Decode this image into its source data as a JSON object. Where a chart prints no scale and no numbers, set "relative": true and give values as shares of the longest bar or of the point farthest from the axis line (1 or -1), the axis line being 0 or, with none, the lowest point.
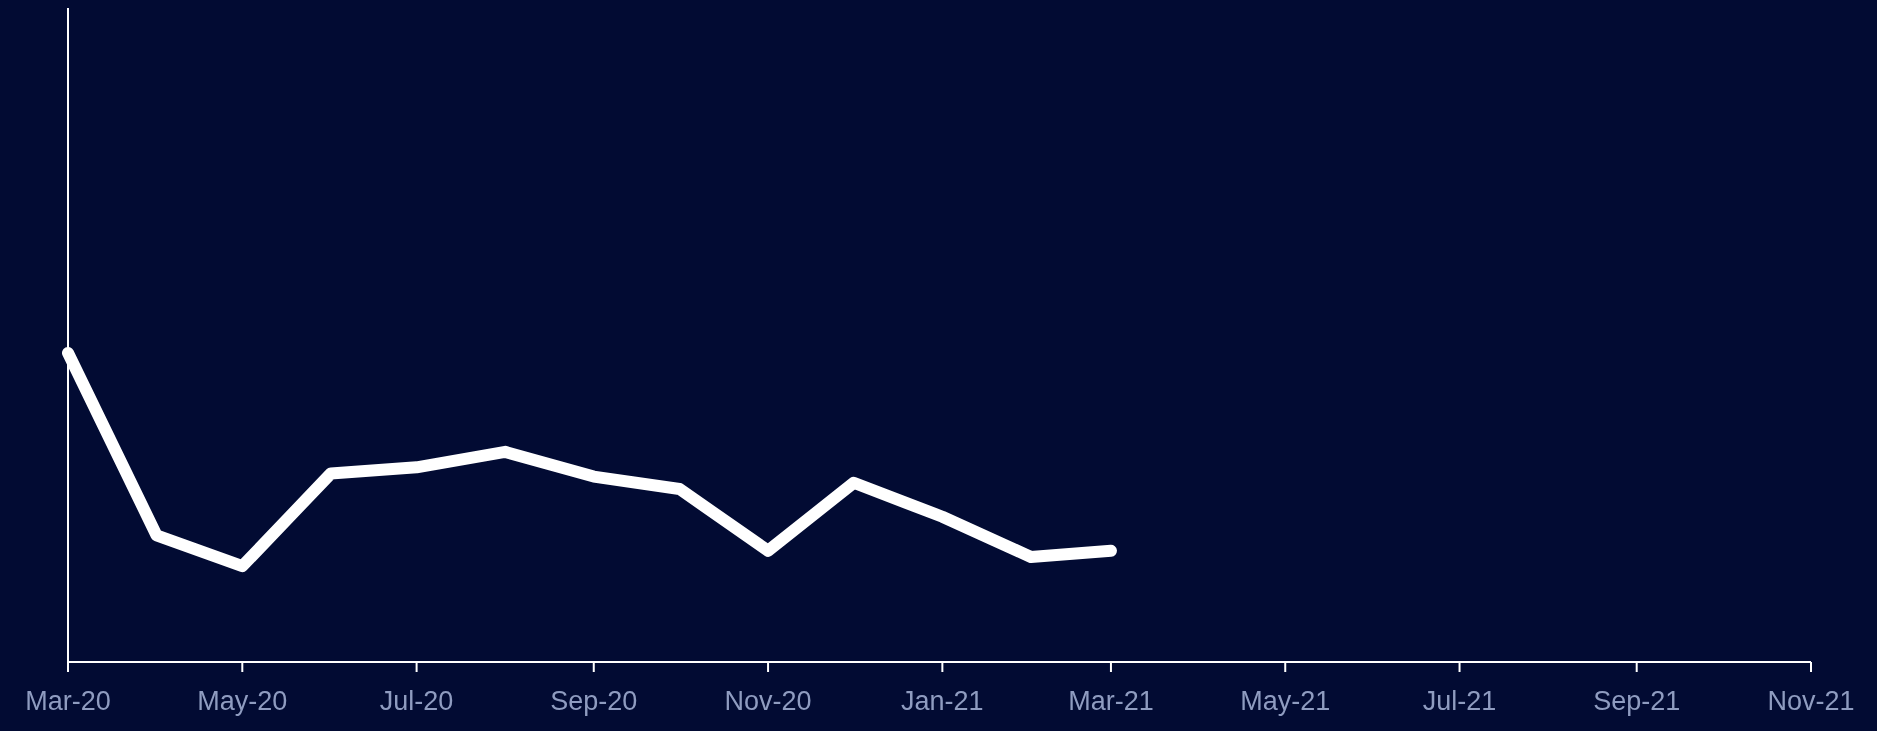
{
  "chart_data": {
    "type": "line",
    "relative": true,
    "x": [
      "2020-03",
      "2020-04",
      "2020-05",
      "2020-06",
      "2020-07",
      "2020-08",
      "2020-09",
      "2020-10",
      "2020-11",
      "2020-12",
      "2021-01",
      "2021-02",
      "2021-03"
    ],
    "series": [
      {
        "color": "#ffffff",
        "values": [
          1,
          0.41,
          0.31,
          0.61,
          0.63,
          0.68,
          0.6,
          0.56,
          0.36,
          0.58,
          0.47,
          0.34,
          0.36
        ]
      }
    ],
    "xlim": [
      "2020-03",
      "2021-11"
    ],
    "xticks": [
      {
        "value": "2020-03",
        "label": "Mar-20"
      },
      {
        "value": "2020-05",
        "label": "May-20"
      },
      {
        "value": "2020-07",
        "label": "Jul-20"
      },
      {
        "value": "2020-09",
        "label": "Sep-20"
      },
      {
        "value": "2020-11",
        "label": "Nov-20"
      },
      {
        "value": "2021-01",
        "label": "Jan-21"
      },
      {
        "value": "2021-03",
        "label": "Mar-21"
      },
      {
        "value": "2021-05",
        "label": "May-21"
      },
      {
        "value": "2021-07",
        "label": "Jul-21"
      },
      {
        "value": "2021-09",
        "label": "Sep-21"
      },
      {
        "value": "2021-11",
        "label": "Nov-21"
      }
    ],
    "grid": false,
    "marker": "none",
    "line_style": "solid"
  }
}
